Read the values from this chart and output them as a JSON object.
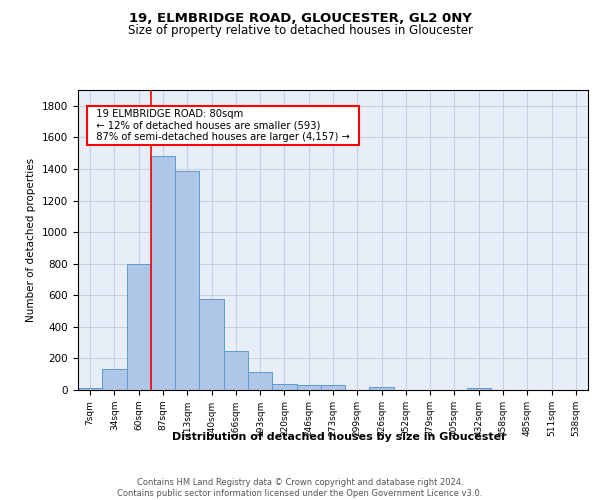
{
  "title_line1": "19, ELMBRIDGE ROAD, GLOUCESTER, GL2 0NY",
  "title_line2": "Size of property relative to detached houses in Gloucester",
  "xlabel": "Distribution of detached houses by size in Gloucester",
  "ylabel": "Number of detached properties",
  "bar_labels": [
    "7sqm",
    "34sqm",
    "60sqm",
    "87sqm",
    "113sqm",
    "140sqm",
    "166sqm",
    "193sqm",
    "220sqm",
    "246sqm",
    "273sqm",
    "299sqm",
    "326sqm",
    "352sqm",
    "379sqm",
    "405sqm",
    "432sqm",
    "458sqm",
    "485sqm",
    "511sqm",
    "538sqm"
  ],
  "bar_values": [
    10,
    130,
    795,
    1480,
    1390,
    575,
    250,
    115,
    35,
    30,
    30,
    0,
    20,
    0,
    0,
    0,
    15,
    0,
    0,
    0,
    0
  ],
  "bar_color": "#aec6e8",
  "bar_edge_color": "#5b9bd5",
  "vline_x": 2.5,
  "annotation_title": "19 ELMBRIDGE ROAD: 80sqm",
  "annotation_line1": "← 12% of detached houses are smaller (593)",
  "annotation_line2": "87% of semi-detached houses are larger (4,157) →",
  "ylim": [
    0,
    1900
  ],
  "yticks": [
    0,
    200,
    400,
    600,
    800,
    1000,
    1200,
    1400,
    1600,
    1800
  ],
  "footer_line1": "Contains HM Land Registry data © Crown copyright and database right 2024.",
  "footer_line2": "Contains public sector information licensed under the Open Government Licence v3.0.",
  "grid_color": "#c8d0e0",
  "background_color": "#e8eef8"
}
